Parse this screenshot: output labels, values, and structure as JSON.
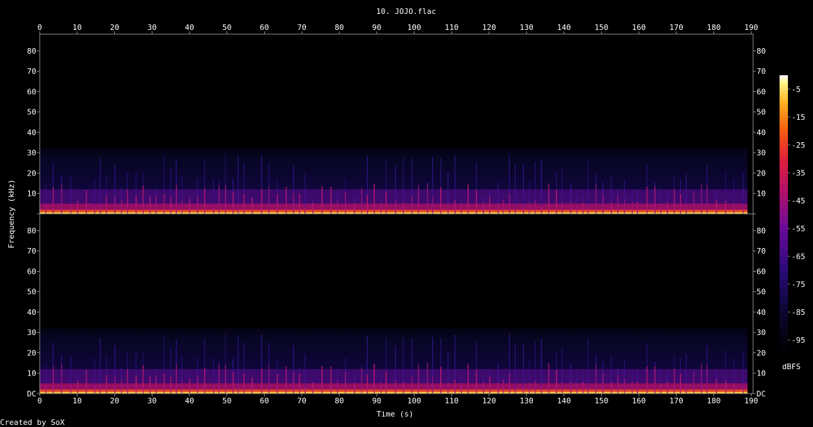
{
  "chart_data": {
    "type": "heatmap",
    "title": "10. JOJO.flac",
    "xlabel": "Time (s)",
    "ylabel": "Frequency (kHz)",
    "footer": "Created by SoX",
    "colorbar_label": "dBFS",
    "xlim": [
      0,
      190.5
    ],
    "ylim": [
      0,
      88.2
    ],
    "x_ticks": [
      0,
      10,
      20,
      30,
      40,
      50,
      60,
      70,
      80,
      90,
      100,
      110,
      120,
      130,
      140,
      150,
      160,
      170,
      180,
      190
    ],
    "x_tick_labels": [
      "0",
      "10",
      "20",
      "30",
      "40",
      "50",
      "60",
      "70",
      "80",
      "90",
      "100",
      "110",
      "120",
      "130",
      "140",
      "150",
      "160",
      "170",
      "180",
      "190"
    ],
    "y_ticks": [
      0,
      10,
      20,
      30,
      40,
      50,
      60,
      70,
      80
    ],
    "y_tick_labels_top": [
      "",
      "10",
      "20",
      "30",
      "40",
      "50",
      "60",
      "70",
      "80"
    ],
    "y_tick_labels_bottom": [
      "DC",
      "10",
      "20",
      "30",
      "40",
      "50",
      "60",
      "70",
      "80"
    ],
    "colorbar_ticks": [
      -5,
      -15,
      -25,
      -35,
      -45,
      -55,
      -65,
      -75,
      -85,
      -95
    ],
    "colorbar_tick_labels": [
      "-5",
      "-15",
      "-25",
      "-35",
      "-45",
      "-55",
      "-65",
      "-75",
      "-85",
      "-95"
    ],
    "colorbar_range": [
      -100,
      0
    ],
    "spectral_cutoff_khz": 32,
    "channels": 2
  }
}
